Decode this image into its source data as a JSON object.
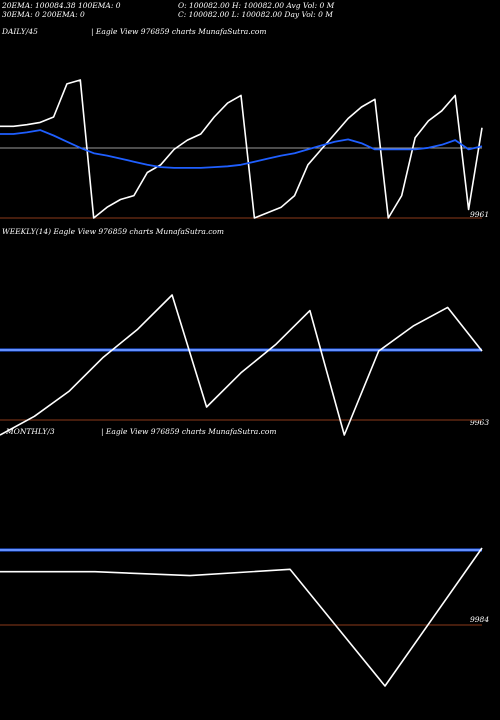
{
  "header": {
    "line1_left": "20EMA: 100084.38 100EMA: 0",
    "line1_right": "O: 100082.00 H: 100082.00 Avg Vol: 0  M",
    "line2_left": "30EMA: 0                    200EMA: 0",
    "line2_right": "C: 100082.00 L: 100082.00 Day Vol: 0  M"
  },
  "colors": {
    "background": "#000000",
    "price_line": "#ffffff",
    "ema_line": "#1f5fff",
    "ema_light": "#a8c0ff",
    "level_line": "#8b3a1a",
    "gray_line": "#9a9a9a"
  },
  "chart_data": [
    {
      "type": "line",
      "panel": "daily",
      "title": "DAILY/45",
      "subtitle": "| Eagle   View  976859 charts MunafaSutra.com",
      "price_label": "9961",
      "series": [
        {
          "values": [
            100080,
            100080,
            100082,
            100085,
            100092,
            100135,
            100140,
            99961,
            99975,
            99985,
            99990,
            100020,
            100030,
            100050,
            100062,
            100070,
            100092,
            100110,
            100120,
            99961,
            99968,
            99975,
            99990,
            100030,
            100050,
            100070,
            100090,
            100105,
            100115,
            99961,
            99990,
            100065,
            100087,
            100100,
            100120,
            99972,
            100078
          ]
        },
        {
          "values": [
            100070,
            100070,
            100072,
            100075,
            100068,
            100060,
            100052,
            100045,
            100042,
            100038,
            100034,
            100030,
            100027,
            100026,
            100026,
            100026,
            100027,
            100028,
            100030,
            100034,
            100038,
            100042,
            100045,
            100050,
            100055,
            100060,
            100063,
            100058,
            100050,
            100050,
            100050,
            100050,
            100052,
            100056,
            100062,
            100050,
            100054
          ]
        }
      ]
    },
    {
      "type": "line",
      "panel": "weekly",
      "title": "WEEKLY(14) Eagle   View  976859 charts MunafaSutra.com",
      "price_label": "9963",
      "series": [
        {
          "values": [
            99945,
            99975,
            100015,
            100070,
            100115,
            100170,
            99990,
            100045,
            100090,
            100145,
            99945,
            100080,
            100120,
            100150,
            100080
          ]
        }
      ]
    },
    {
      "type": "line",
      "panel": "monthly",
      "title": "MONTHLY/3",
      "subtitle": "| Eagle   View  976859 charts MunafaSutra.com",
      "price_label": "9984",
      "series": [
        {
          "values": [
            100050,
            100050,
            100045,
            100053,
            99905,
            100080
          ]
        }
      ]
    }
  ]
}
